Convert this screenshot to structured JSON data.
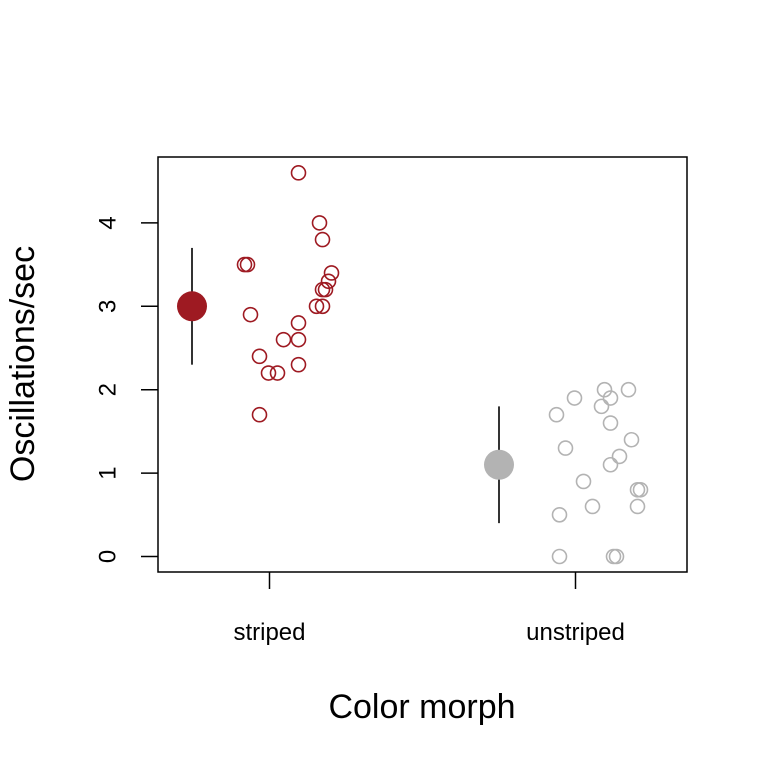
{
  "chart_data": {
    "type": "scatter",
    "xlabel": "Color morph",
    "ylabel": "Oscillations/sec",
    "ylim": [
      -0.2,
      4.8
    ],
    "y_ticks": [
      0,
      1,
      2,
      3,
      4
    ],
    "categories": [
      "striped",
      "unstriped"
    ],
    "grid": false,
    "series": [
      {
        "category": "striped",
        "color": "#9e1a22",
        "mean": 3.0,
        "interval": [
          2.3,
          3.7
        ],
        "points": [
          {
            "jitter": 0.03,
            "y": 4.6
          },
          {
            "jitter": 0.1,
            "y": 4.0
          },
          {
            "jitter": 0.11,
            "y": 3.8
          },
          {
            "jitter": -0.15,
            "y": 3.5
          },
          {
            "jitter": -0.14,
            "y": 3.5
          },
          {
            "jitter": 0.14,
            "y": 3.4
          },
          {
            "jitter": 0.13,
            "y": 3.3
          },
          {
            "jitter": 0.11,
            "y": 3.2
          },
          {
            "jitter": 0.12,
            "y": 3.2
          },
          {
            "jitter": 0.09,
            "y": 3.0
          },
          {
            "jitter": 0.11,
            "y": 3.0
          },
          {
            "jitter": -0.13,
            "y": 2.9
          },
          {
            "jitter": 0.03,
            "y": 2.8
          },
          {
            "jitter": -0.02,
            "y": 2.6
          },
          {
            "jitter": 0.03,
            "y": 2.6
          },
          {
            "jitter": -0.1,
            "y": 2.4
          },
          {
            "jitter": 0.03,
            "y": 2.3
          },
          {
            "jitter": -0.07,
            "y": 2.2
          },
          {
            "jitter": -0.04,
            "y": 2.2
          },
          {
            "jitter": -0.1,
            "y": 1.7
          }
        ]
      },
      {
        "category": "unstriped",
        "color": "#b3b3b3",
        "mean": 1.1,
        "interval": [
          0.4,
          1.8
        ],
        "points": [
          {
            "jitter": 0.03,
            "y": 2.0
          },
          {
            "jitter": 0.11,
            "y": 2.0
          },
          {
            "jitter": -0.07,
            "y": 1.9
          },
          {
            "jitter": 0.05,
            "y": 1.9
          },
          {
            "jitter": 0.02,
            "y": 1.8
          },
          {
            "jitter": -0.13,
            "y": 1.7
          },
          {
            "jitter": 0.05,
            "y": 1.6
          },
          {
            "jitter": 0.12,
            "y": 1.4
          },
          {
            "jitter": -0.1,
            "y": 1.3
          },
          {
            "jitter": 0.08,
            "y": 1.2
          },
          {
            "jitter": 0.05,
            "y": 1.1
          },
          {
            "jitter": -0.04,
            "y": 0.9
          },
          {
            "jitter": 0.15,
            "y": 0.8
          },
          {
            "jitter": 0.14,
            "y": 0.8
          },
          {
            "jitter": -0.01,
            "y": 0.6
          },
          {
            "jitter": 0.14,
            "y": 0.6
          },
          {
            "jitter": -0.12,
            "y": 0.5
          },
          {
            "jitter": -0.12,
            "y": 0.0
          },
          {
            "jitter": 0.06,
            "y": 0.0
          },
          {
            "jitter": 0.07,
            "y": 0.0
          }
        ]
      }
    ]
  }
}
